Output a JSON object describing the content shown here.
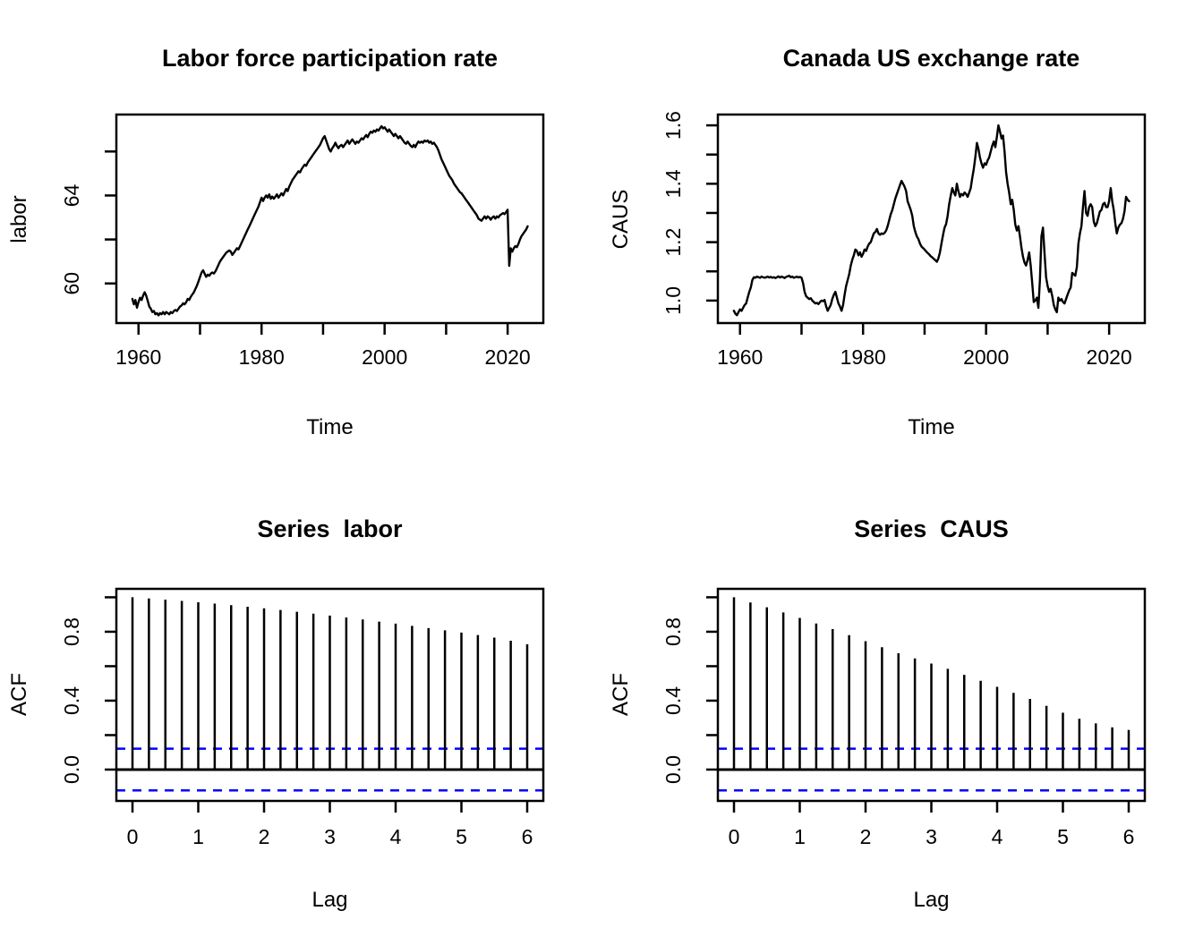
{
  "figure": {
    "background": "#ffffff",
    "axis_color": "#000000",
    "series_color": "#000000",
    "confidence_color": "#0000ff"
  },
  "chart_data": [
    {
      "type": "line",
      "title": "Labor force participation rate",
      "xlabel": "Time",
      "ylabel": "labor",
      "xlim": [
        1956.4,
        2025.8
      ],
      "ylim": [
        58.2,
        67.68
      ],
      "grid": false,
      "xticks": {
        "values": [
          1960,
          1970,
          1980,
          1990,
          2000,
          2010,
          2020
        ],
        "labels": [
          "1960",
          "",
          "1980",
          "",
          "2000",
          "",
          "2020"
        ]
      },
      "yticks": {
        "values": [
          60,
          62,
          64,
          66
        ],
        "labels": [
          "60",
          "",
          "64",
          ""
        ]
      },
      "x_start": 1959.0,
      "x_step": 0.25,
      "values": [
        59.3,
        59.05,
        59.25,
        58.9,
        59.15,
        59.35,
        59.25,
        59.45,
        59.6,
        59.45,
        59.2,
        58.95,
        58.85,
        58.7,
        58.75,
        58.6,
        58.65,
        58.55,
        58.65,
        58.6,
        58.7,
        58.6,
        58.7,
        58.65,
        58.6,
        58.7,
        58.65,
        58.75,
        58.8,
        58.75,
        58.85,
        58.95,
        59.0,
        59.1,
        59.05,
        59.15,
        59.3,
        59.25,
        59.4,
        59.5,
        59.6,
        59.75,
        59.9,
        60.1,
        60.3,
        60.5,
        60.6,
        60.45,
        60.3,
        60.4,
        60.35,
        60.45,
        60.5,
        60.45,
        60.55,
        60.7,
        60.85,
        61.0,
        61.1,
        61.2,
        61.3,
        61.4,
        61.45,
        61.5,
        61.45,
        61.3,
        61.4,
        61.5,
        61.6,
        61.55,
        61.7,
        61.85,
        62.0,
        62.15,
        62.3,
        62.45,
        62.6,
        62.75,
        62.9,
        63.05,
        63.2,
        63.35,
        63.5,
        63.7,
        63.9,
        63.75,
        63.9,
        64.0,
        63.9,
        64.05,
        63.85,
        63.95,
        63.85,
        63.95,
        64.05,
        63.9,
        64.0,
        64.1,
        64.0,
        64.15,
        64.3,
        64.2,
        64.4,
        64.55,
        64.7,
        64.8,
        64.9,
        65.0,
        65.1,
        65.05,
        65.2,
        65.3,
        65.4,
        65.35,
        65.5,
        65.6,
        65.7,
        65.8,
        65.9,
        66.0,
        66.1,
        66.2,
        66.3,
        66.45,
        66.6,
        66.7,
        66.5,
        66.3,
        66.1,
        66.0,
        66.15,
        66.25,
        66.4,
        66.25,
        66.15,
        66.25,
        66.3,
        66.2,
        66.3,
        66.4,
        66.5,
        66.35,
        66.45,
        66.55,
        66.45,
        66.35,
        66.45,
        66.4,
        66.5,
        66.6,
        66.55,
        66.65,
        66.75,
        66.65,
        66.8,
        66.9,
        66.85,
        66.95,
        66.9,
        67.0,
        66.95,
        67.05,
        67.15,
        67.05,
        67.1,
        67.0,
        66.9,
        67.0,
        66.9,
        66.8,
        66.7,
        66.8,
        66.7,
        66.6,
        66.7,
        66.6,
        66.5,
        66.4,
        66.35,
        66.45,
        66.35,
        66.25,
        66.2,
        66.3,
        66.2,
        66.35,
        66.45,
        66.4,
        66.45,
        66.4,
        66.5,
        66.45,
        66.5,
        66.4,
        66.45,
        66.35,
        66.4,
        66.3,
        66.2,
        66.05,
        65.85,
        65.65,
        65.5,
        65.35,
        65.2,
        65.05,
        64.9,
        64.8,
        64.7,
        64.55,
        64.45,
        64.35,
        64.25,
        64.15,
        64.1,
        64.0,
        63.9,
        63.8,
        63.7,
        63.6,
        63.5,
        63.4,
        63.3,
        63.2,
        63.1,
        62.95,
        62.9,
        62.85,
        62.95,
        63.05,
        62.95,
        63.05,
        63.0,
        62.9,
        63.0,
        63.05,
        62.95,
        63.05,
        63.0,
        63.1,
        63.15,
        63.2,
        63.15,
        63.25,
        63.35,
        60.8,
        61.6,
        61.45,
        61.6,
        61.7,
        61.65,
        61.8,
        62.0,
        62.15,
        62.25,
        62.35,
        62.45,
        62.6
      ]
    },
    {
      "type": "line",
      "title": "Canada US exchange rate",
      "xlabel": "Time",
      "ylabel": "CAUS",
      "xlim": [
        1956.4,
        2025.8
      ],
      "ylim": [
        0.923,
        1.637
      ],
      "grid": false,
      "xticks": {
        "values": [
          1960,
          1970,
          1980,
          1990,
          2000,
          2010,
          2020
        ],
        "labels": [
          "1960",
          "",
          "1980",
          "",
          "2000",
          "",
          "2020"
        ]
      },
      "yticks": {
        "values": [
          1.0,
          1.1,
          1.2,
          1.3,
          1.4,
          1.5,
          1.6
        ],
        "labels": [
          "1.0",
          "",
          "1.2",
          "",
          "1.4",
          "",
          "1.6"
        ]
      },
      "x_start": 1959.0,
      "x_step": 0.25,
      "values": [
        0.965,
        0.955,
        0.95,
        0.96,
        0.97,
        0.965,
        0.975,
        0.985,
        0.99,
        1.01,
        1.03,
        1.045,
        1.07,
        1.08,
        1.078,
        1.082,
        1.08,
        1.078,
        1.082,
        1.08,
        1.078,
        1.08,
        1.082,
        1.079,
        1.081,
        1.078,
        1.08,
        1.077,
        1.08,
        1.083,
        1.079,
        1.082,
        1.08,
        1.077,
        1.081,
        1.083,
        1.085,
        1.08,
        1.082,
        1.078,
        1.08,
        1.082,
        1.079,
        1.081,
        1.078,
        1.06,
        1.03,
        1.015,
        1.01,
        1.005,
        1.008,
        1.0,
        0.995,
        0.99,
        0.992,
        0.988,
        0.995,
        1.0,
        0.998,
        1.002,
        0.98,
        0.965,
        0.975,
        0.985,
        1.005,
        1.02,
        1.03,
        1.01,
        0.99,
        0.98,
        0.965,
        0.985,
        1.02,
        1.05,
        1.07,
        1.09,
        1.12,
        1.14,
        1.155,
        1.175,
        1.17,
        1.155,
        1.165,
        1.15,
        1.16,
        1.175,
        1.17,
        1.185,
        1.195,
        1.2,
        1.215,
        1.23,
        1.235,
        1.245,
        1.23,
        1.225,
        1.23,
        1.228,
        1.232,
        1.24,
        1.255,
        1.275,
        1.295,
        1.31,
        1.33,
        1.35,
        1.365,
        1.38,
        1.395,
        1.41,
        1.4,
        1.39,
        1.375,
        1.34,
        1.325,
        1.31,
        1.29,
        1.255,
        1.235,
        1.22,
        1.21,
        1.195,
        1.185,
        1.18,
        1.175,
        1.168,
        1.163,
        1.158,
        1.152,
        1.148,
        1.143,
        1.138,
        1.133,
        1.145,
        1.165,
        1.195,
        1.225,
        1.25,
        1.262,
        1.29,
        1.33,
        1.36,
        1.385,
        1.37,
        1.36,
        1.4,
        1.375,
        1.355,
        1.365,
        1.36,
        1.37,
        1.365,
        1.355,
        1.37,
        1.385,
        1.42,
        1.45,
        1.49,
        1.54,
        1.52,
        1.49,
        1.47,
        1.455,
        1.47,
        1.465,
        1.48,
        1.49,
        1.51,
        1.53,
        1.545,
        1.525,
        1.56,
        1.6,
        1.58,
        1.555,
        1.565,
        1.51,
        1.44,
        1.4,
        1.37,
        1.33,
        1.345,
        1.31,
        1.26,
        1.24,
        1.255,
        1.22,
        1.18,
        1.15,
        1.13,
        1.12,
        1.14,
        1.165,
        1.12,
        1.06,
        0.995,
        1.0,
        1.01,
        0.975,
        1.07,
        1.22,
        1.25,
        1.16,
        1.08,
        1.05,
        1.03,
        1.04,
        1.015,
        0.985,
        0.97,
        0.96,
        1.01,
        1.0,
        1.005,
        0.995,
        0.99,
        1.005,
        1.02,
        1.035,
        1.045,
        1.095,
        1.09,
        1.085,
        1.115,
        1.195,
        1.23,
        1.255,
        1.32,
        1.375,
        1.3,
        1.29,
        1.32,
        1.33,
        1.32,
        1.27,
        1.255,
        1.265,
        1.285,
        1.305,
        1.31,
        1.33,
        1.335,
        1.32,
        1.32,
        1.34,
        1.385,
        1.34,
        1.31,
        1.265,
        1.23,
        1.25,
        1.26,
        1.265,
        1.28,
        1.305,
        1.355,
        1.345,
        1.34
      ]
    },
    {
      "type": "bar",
      "title": "Series  labor",
      "xlabel": "Lag",
      "ylabel": "ACF",
      "xlim": [
        -0.245,
        6.245
      ],
      "ylim": [
        -0.182,
        1.049
      ],
      "grid": false,
      "xticks": {
        "values": [
          0,
          1,
          2,
          3,
          4,
          5,
          6
        ],
        "labels": [
          "0",
          "1",
          "2",
          "3",
          "4",
          "5",
          "6"
        ]
      },
      "yticks": {
        "values": [
          0.0,
          0.2,
          0.4,
          0.6,
          0.8,
          1.0
        ],
        "labels": [
          "0.0",
          "",
          "0.4",
          "",
          "0.8",
          ""
        ]
      },
      "x_start": 0,
      "x_step": 0.25,
      "zero_line": true,
      "conf_level": 0.121,
      "values": [
        1.0,
        0.993,
        0.986,
        0.979,
        0.971,
        0.963,
        0.954,
        0.945,
        0.936,
        0.926,
        0.916,
        0.905,
        0.894,
        0.883,
        0.871,
        0.859,
        0.847,
        0.834,
        0.821,
        0.808,
        0.795,
        0.781,
        0.766,
        0.748,
        0.727
      ]
    },
    {
      "type": "bar",
      "title": "Series  CAUS",
      "xlabel": "Lag",
      "ylabel": "ACF",
      "xlim": [
        -0.245,
        6.245
      ],
      "ylim": [
        -0.182,
        1.049
      ],
      "grid": false,
      "xticks": {
        "values": [
          0,
          1,
          2,
          3,
          4,
          5,
          6
        ],
        "labels": [
          "0",
          "1",
          "2",
          "3",
          "4",
          "5",
          "6"
        ]
      },
      "yticks": {
        "values": [
          0.0,
          0.2,
          0.4,
          0.6,
          0.8,
          1.0
        ],
        "labels": [
          "0.0",
          "",
          "0.4",
          "",
          "0.8",
          ""
        ]
      },
      "x_start": 0,
      "x_step": 0.25,
      "zero_line": true,
      "conf_level": 0.121,
      "values": [
        1.0,
        0.97,
        0.942,
        0.912,
        0.88,
        0.848,
        0.815,
        0.78,
        0.745,
        0.71,
        0.675,
        0.645,
        0.615,
        0.585,
        0.55,
        0.515,
        0.48,
        0.445,
        0.41,
        0.37,
        0.33,
        0.295,
        0.268,
        0.245,
        0.23
      ]
    }
  ]
}
